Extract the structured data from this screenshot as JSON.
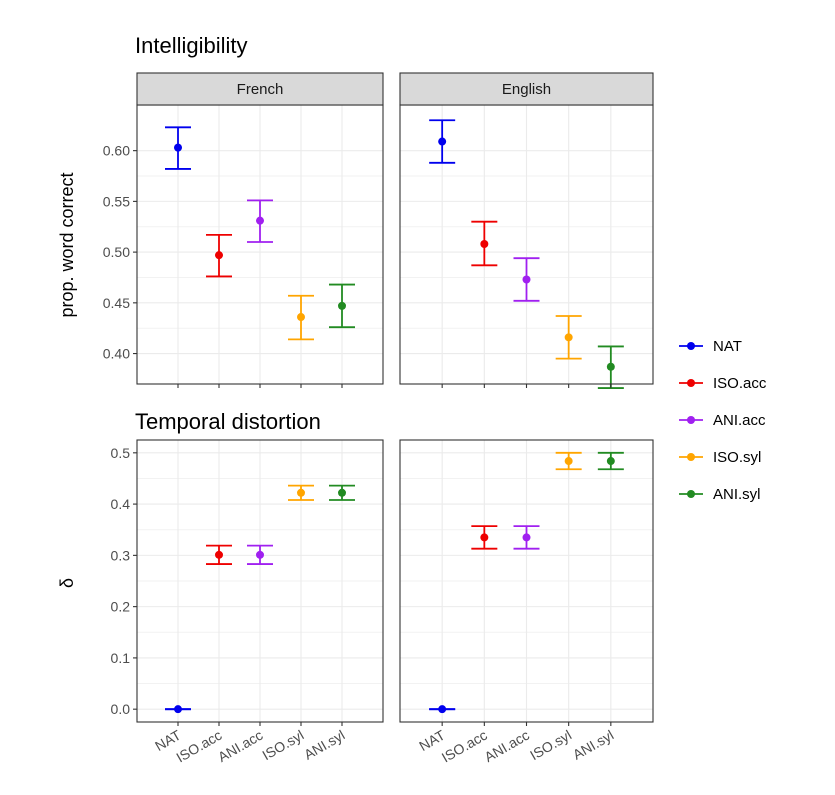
{
  "chart_data": [
    {
      "type": "errorbar",
      "title": "Intelligibility",
      "ylabel": "prop. word correct",
      "xlabel": "",
      "ylim": [
        0.37,
        0.645
      ],
      "yticks": [
        0.4,
        0.45,
        0.5,
        0.55,
        0.6
      ],
      "ytick_labels": [
        "0.40",
        "0.45",
        "0.50",
        "0.55",
        "0.60"
      ],
      "categories": [
        "NAT",
        "ISO.acc",
        "ANI.acc",
        "ISO.syl",
        "ANI.syl"
      ],
      "grid": true,
      "facets": [
        {
          "label": "French",
          "points": [
            {
              "x": "NAT",
              "y": 0.603,
              "low": 0.582,
              "high": 0.623
            },
            {
              "x": "ISO.acc",
              "y": 0.497,
              "low": 0.476,
              "high": 0.517
            },
            {
              "x": "ANI.acc",
              "y": 0.531,
              "low": 0.51,
              "high": 0.551
            },
            {
              "x": "ISO.syl",
              "y": 0.436,
              "low": 0.414,
              "high": 0.457
            },
            {
              "x": "ANI.syl",
              "y": 0.447,
              "low": 0.426,
              "high": 0.468
            }
          ]
        },
        {
          "label": "English",
          "points": [
            {
              "x": "NAT",
              "y": 0.609,
              "low": 0.588,
              "high": 0.63
            },
            {
              "x": "ISO.acc",
              "y": 0.508,
              "low": 0.487,
              "high": 0.53
            },
            {
              "x": "ANI.acc",
              "y": 0.473,
              "low": 0.452,
              "high": 0.494
            },
            {
              "x": "ISO.syl",
              "y": 0.416,
              "low": 0.395,
              "high": 0.437
            },
            {
              "x": "ANI.syl",
              "y": 0.387,
              "low": 0.366,
              "high": 0.407
            }
          ]
        }
      ]
    },
    {
      "type": "errorbar",
      "title": "Temporal distortion",
      "ylabel": "δ",
      "xlabel": "",
      "ylim": [
        -0.025,
        0.525
      ],
      "yticks": [
        0.0,
        0.1,
        0.2,
        0.3,
        0.4,
        0.5
      ],
      "ytick_labels": [
        "0.0",
        "0.1",
        "0.2",
        "0.3",
        "0.4",
        "0.5"
      ],
      "categories": [
        "NAT",
        "ISO.acc",
        "ANI.acc",
        "ISO.syl",
        "ANI.syl"
      ],
      "grid": true,
      "facets": [
        {
          "label": "French",
          "points": [
            {
              "x": "NAT",
              "y": 0.0,
              "low": 0.0,
              "high": 0.0
            },
            {
              "x": "ISO.acc",
              "y": 0.301,
              "low": 0.283,
              "high": 0.319
            },
            {
              "x": "ANI.acc",
              "y": 0.301,
              "low": 0.283,
              "high": 0.319
            },
            {
              "x": "ISO.syl",
              "y": 0.422,
              "low": 0.408,
              "high": 0.436
            },
            {
              "x": "ANI.syl",
              "y": 0.422,
              "low": 0.408,
              "high": 0.436
            }
          ]
        },
        {
          "label": "English",
          "points": [
            {
              "x": "NAT",
              "y": 0.0,
              "low": 0.0,
              "high": 0.0
            },
            {
              "x": "ISO.acc",
              "y": 0.335,
              "low": 0.313,
              "high": 0.357
            },
            {
              "x": "ANI.acc",
              "y": 0.335,
              "low": 0.313,
              "high": 0.357
            },
            {
              "x": "ISO.syl",
              "y": 0.484,
              "low": 0.468,
              "high": 0.5
            },
            {
              "x": "ANI.syl",
              "y": 0.484,
              "low": 0.468,
              "high": 0.5
            }
          ]
        }
      ]
    }
  ],
  "legend": {
    "placement": "right",
    "items": [
      {
        "name": "NAT",
        "color": "#0000ee"
      },
      {
        "name": "ISO.acc",
        "color": "#ee0000"
      },
      {
        "name": "ANI.acc",
        "color": "#a020f0"
      },
      {
        "name": "ISO.syl",
        "color": "#ffa500"
      },
      {
        "name": "ANI.syl",
        "color": "#228b22"
      }
    ]
  }
}
